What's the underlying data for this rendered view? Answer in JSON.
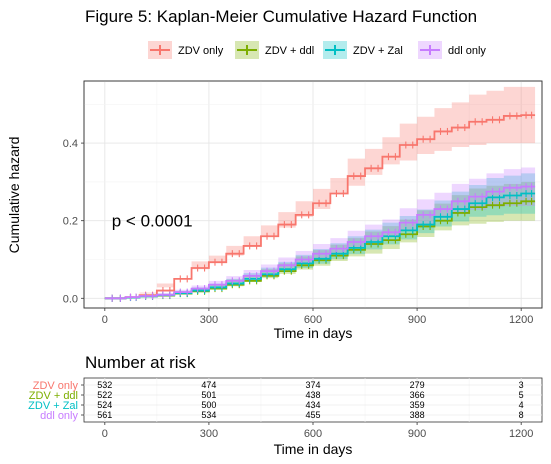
{
  "chart_data": [
    {
      "type": "line",
      "title": "Figure 5: Kaplan-Meier Cumulative Hazard Function",
      "xlabel": "Time in days",
      "ylabel": "Cumulative hazard",
      "xlim": [
        -60,
        1260
      ],
      "ylim": [
        -0.025,
        0.56
      ],
      "xticks": [
        0,
        300,
        600,
        900,
        1200
      ],
      "xtick_labels": [
        "0",
        "300",
        "600",
        "900",
        "1200"
      ],
      "yticks": [
        0.0,
        0.2,
        0.4
      ],
      "ytick_labels": [
        "0.0",
        "0.2",
        "0.4"
      ],
      "grid": true,
      "legend_position": "top",
      "annotation": "p < 0.0001",
      "annotation_at": [
        20,
        0.2
      ],
      "series": [
        {
          "name": "ZDV only",
          "color": "#F8766D",
          "x": [
            0,
            60,
            100,
            150,
            200,
            250,
            300,
            350,
            400,
            450,
            500,
            550,
            600,
            650,
            700,
            750,
            800,
            850,
            900,
            950,
            1000,
            1050,
            1100,
            1150,
            1200,
            1240
          ],
          "y": [
            0,
            0.003,
            0.008,
            0.02,
            0.05,
            0.078,
            0.093,
            0.115,
            0.135,
            0.16,
            0.19,
            0.215,
            0.245,
            0.27,
            0.315,
            0.335,
            0.365,
            0.395,
            0.41,
            0.43,
            0.44,
            0.455,
            0.46,
            0.47,
            0.472,
            0.472
          ],
          "lower": [
            0,
            0.002,
            0.005,
            0.015,
            0.038,
            0.062,
            0.075,
            0.095,
            0.11,
            0.135,
            0.16,
            0.182,
            0.21,
            0.23,
            0.272,
            0.29,
            0.318,
            0.345,
            0.355,
            0.372,
            0.38,
            0.39,
            0.395,
            0.4,
            0.4,
            0.4
          ],
          "upper": [
            0,
            0.004,
            0.012,
            0.028,
            0.062,
            0.095,
            0.11,
            0.135,
            0.16,
            0.188,
            0.222,
            0.25,
            0.282,
            0.31,
            0.36,
            0.385,
            0.415,
            0.45,
            0.468,
            0.49,
            0.505,
            0.525,
            0.535,
            0.545,
            0.545,
            0.545
          ]
        },
        {
          "name": "ZDV + ddl",
          "color": "#7CAE00",
          "x": [
            0,
            60,
            100,
            150,
            200,
            250,
            300,
            350,
            400,
            450,
            500,
            550,
            600,
            650,
            700,
            750,
            800,
            850,
            900,
            950,
            1000,
            1050,
            1100,
            1150,
            1200,
            1240
          ],
          "y": [
            0,
            0.002,
            0.005,
            0.007,
            0.012,
            0.018,
            0.025,
            0.035,
            0.045,
            0.058,
            0.07,
            0.085,
            0.098,
            0.11,
            0.125,
            0.14,
            0.15,
            0.165,
            0.185,
            0.2,
            0.22,
            0.235,
            0.24,
            0.245,
            0.25,
            0.25
          ],
          "lower": [
            0,
            0.001,
            0.002,
            0.004,
            0.007,
            0.011,
            0.016,
            0.024,
            0.031,
            0.042,
            0.052,
            0.063,
            0.074,
            0.084,
            0.096,
            0.108,
            0.115,
            0.127,
            0.144,
            0.158,
            0.175,
            0.188,
            0.192,
            0.197,
            0.2,
            0.2
          ],
          "upper": [
            0,
            0.004,
            0.008,
            0.011,
            0.018,
            0.026,
            0.035,
            0.048,
            0.06,
            0.075,
            0.09,
            0.108,
            0.124,
            0.138,
            0.155,
            0.172,
            0.186,
            0.203,
            0.227,
            0.244,
            0.266,
            0.283,
            0.29,
            0.295,
            0.3,
            0.3
          ]
        },
        {
          "name": "ZDV + Zal",
          "color": "#00BFC4",
          "x": [
            0,
            60,
            100,
            150,
            200,
            250,
            300,
            350,
            400,
            450,
            500,
            550,
            600,
            650,
            700,
            750,
            800,
            850,
            900,
            950,
            1000,
            1050,
            1100,
            1150,
            1200,
            1240
          ],
          "y": [
            0,
            0.002,
            0.005,
            0.008,
            0.013,
            0.02,
            0.028,
            0.038,
            0.05,
            0.062,
            0.075,
            0.09,
            0.102,
            0.115,
            0.13,
            0.145,
            0.16,
            0.175,
            0.19,
            0.21,
            0.23,
            0.245,
            0.26,
            0.265,
            0.27,
            0.27
          ],
          "lower": [
            0,
            0.001,
            0.002,
            0.005,
            0.008,
            0.013,
            0.019,
            0.027,
            0.036,
            0.046,
            0.057,
            0.069,
            0.078,
            0.089,
            0.101,
            0.114,
            0.126,
            0.139,
            0.152,
            0.168,
            0.185,
            0.198,
            0.21,
            0.214,
            0.218,
            0.218
          ],
          "upper": [
            0,
            0.004,
            0.008,
            0.012,
            0.019,
            0.028,
            0.038,
            0.05,
            0.065,
            0.079,
            0.094,
            0.112,
            0.127,
            0.142,
            0.16,
            0.177,
            0.195,
            0.212,
            0.229,
            0.252,
            0.275,
            0.292,
            0.31,
            0.316,
            0.322,
            0.322
          ]
        },
        {
          "name": "ddl only",
          "color": "#C77CFF",
          "x": [
            0,
            60,
            100,
            150,
            200,
            250,
            300,
            350,
            400,
            450,
            500,
            550,
            600,
            650,
            700,
            750,
            800,
            850,
            900,
            950,
            1000,
            1050,
            1100,
            1150,
            1200,
            1240
          ],
          "y": [
            0,
            0.003,
            0.006,
            0.009,
            0.016,
            0.025,
            0.035,
            0.045,
            0.058,
            0.07,
            0.085,
            0.1,
            0.115,
            0.128,
            0.145,
            0.16,
            0.17,
            0.195,
            0.215,
            0.23,
            0.25,
            0.262,
            0.275,
            0.285,
            0.288,
            0.288
          ],
          "lower": [
            0,
            0.002,
            0.003,
            0.005,
            0.011,
            0.018,
            0.026,
            0.034,
            0.044,
            0.054,
            0.066,
            0.079,
            0.091,
            0.102,
            0.117,
            0.13,
            0.138,
            0.16,
            0.177,
            0.19,
            0.207,
            0.217,
            0.228,
            0.236,
            0.238,
            0.238
          ],
          "upper": [
            0,
            0.005,
            0.009,
            0.013,
            0.022,
            0.033,
            0.045,
            0.057,
            0.073,
            0.087,
            0.105,
            0.122,
            0.14,
            0.155,
            0.174,
            0.19,
            0.203,
            0.232,
            0.255,
            0.272,
            0.295,
            0.308,
            0.322,
            0.333,
            0.337,
            0.337
          ]
        }
      ]
    },
    {
      "type": "table",
      "title": "Number at risk",
      "xlabel": "Time in days",
      "xlim": [
        -60,
        1260
      ],
      "xticks": [
        0,
        300,
        600,
        900,
        1200
      ],
      "xtick_labels": [
        "0",
        "300",
        "600",
        "900",
        "1200"
      ],
      "rows": [
        {
          "name": "ZDV only",
          "color": "#F8766D",
          "values": [
            "532",
            "474",
            "374",
            "279",
            "3"
          ]
        },
        {
          "name": "ZDV + ddl",
          "color": "#7CAE00",
          "values": [
            "522",
            "501",
            "438",
            "366",
            "5"
          ]
        },
        {
          "name": "ZDV + Zal",
          "color": "#00BFC4",
          "values": [
            "524",
            "500",
            "434",
            "359",
            "4"
          ]
        },
        {
          "name": "ddl only",
          "color": "#C77CFF",
          "values": [
            "561",
            "534",
            "455",
            "388",
            "8"
          ]
        }
      ]
    }
  ]
}
